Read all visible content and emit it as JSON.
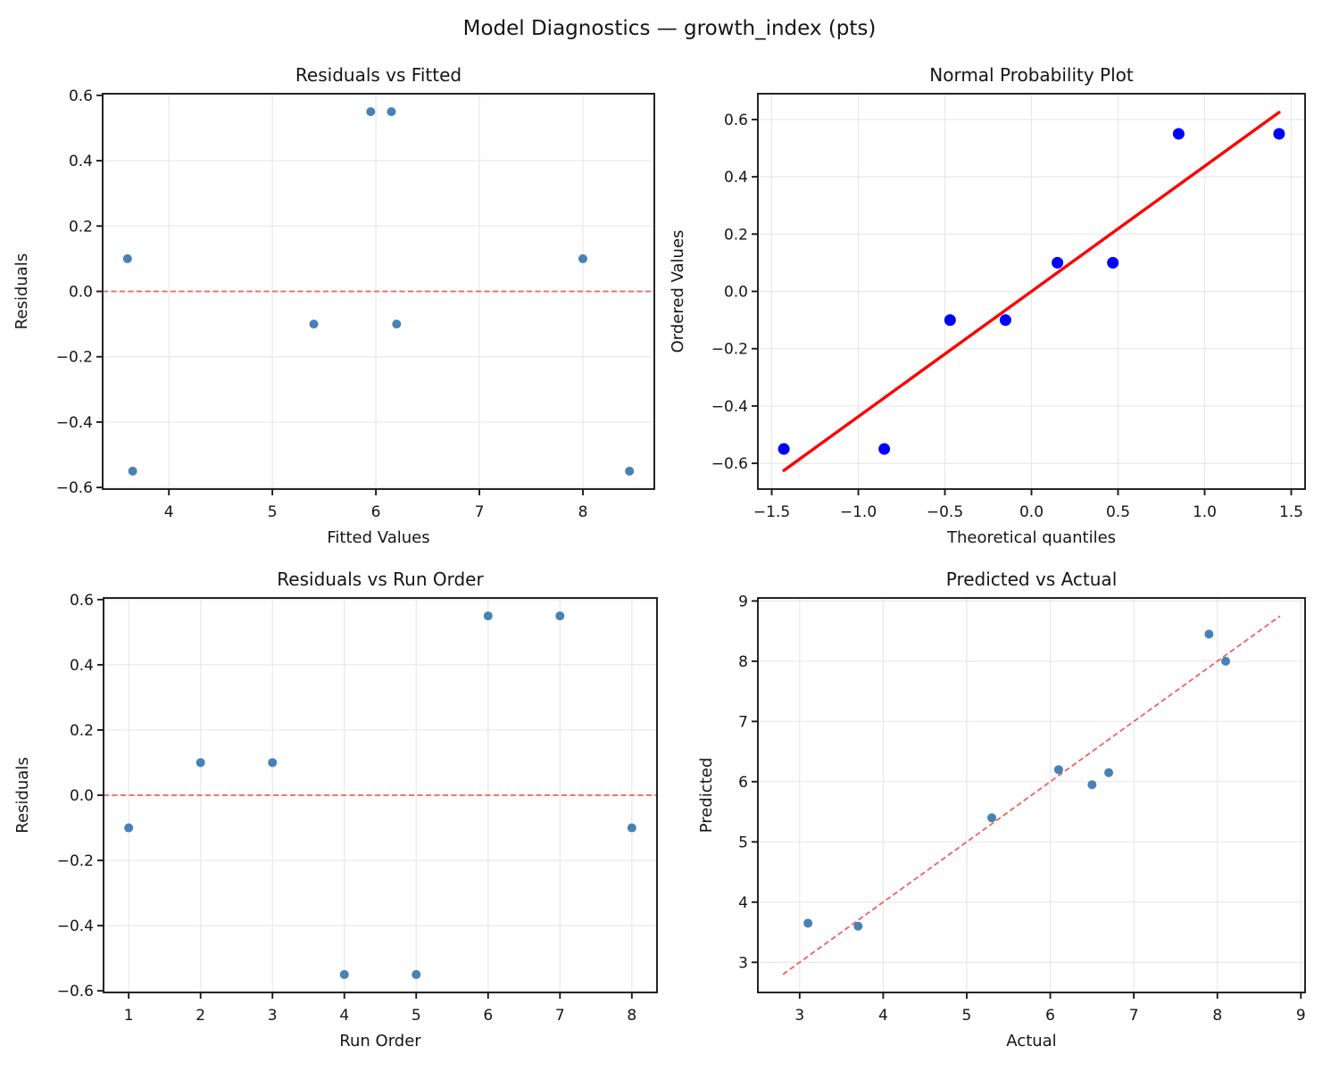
{
  "figure": {
    "suptitle": "Model Diagnostics — growth_index (pts)",
    "colors": {
      "scatter_marker": "#4682B4",
      "probplot_marker": "#0000FF",
      "probplot_line": "#FF0000",
      "refline": "#F26060",
      "grid": "#E8E8E8",
      "spine": "#1A1A1A",
      "text": "#151515",
      "background": "#FFFFFF"
    }
  },
  "chart_data": [
    {
      "id": "residuals-vs-fitted",
      "type": "scatter",
      "title": "Residuals vs Fitted",
      "xlabel": "Fitted Values",
      "ylabel": "Residuals",
      "x": [
        3.6,
        3.65,
        5.4,
        5.95,
        6.15,
        6.2,
        8.0,
        8.45
      ],
      "y": [
        0.1,
        -0.55,
        -0.1,
        0.55,
        0.55,
        -0.1,
        0.1,
        -0.55
      ],
      "xticks": [
        4,
        5,
        6,
        7,
        8
      ],
      "yticks": [
        -0.6,
        -0.4,
        -0.2,
        0.0,
        0.2,
        0.4,
        0.6
      ],
      "xtick_labels": [
        "4",
        "5",
        "6",
        "7",
        "8"
      ],
      "ytick_labels": [
        "−0.6",
        "−0.4",
        "−0.2",
        "0.0",
        "0.2",
        "0.4",
        "0.6"
      ],
      "xlim": [
        3.36,
        8.69
      ],
      "ylim": [
        -0.605,
        0.605
      ],
      "grid": true,
      "refline": {
        "kind": "hline",
        "y": 0.0,
        "style": "dashed"
      },
      "marker": {
        "color": "#4682B4",
        "radius": 5
      },
      "ylabel_offset": 85
    },
    {
      "id": "normal-probability",
      "type": "scatter",
      "title": "Normal Probability Plot",
      "xlabel": "Theoretical quantiles",
      "ylabel": "Ordered Values",
      "x": [
        -1.43,
        -0.85,
        -0.47,
        -0.15,
        0.15,
        0.47,
        0.85,
        1.43
      ],
      "y": [
        -0.55,
        -0.55,
        -0.1,
        -0.1,
        0.1,
        0.1,
        0.55,
        0.55
      ],
      "xticks": [
        -1.5,
        -1.0,
        -0.5,
        0.0,
        0.5,
        1.0,
        1.5
      ],
      "yticks": [
        -0.6,
        -0.4,
        -0.2,
        0.0,
        0.2,
        0.4,
        0.6
      ],
      "xtick_labels": [
        "−1.5",
        "−1.0",
        "−0.5",
        "0.0",
        "0.5",
        "1.0",
        "1.5"
      ],
      "ytick_labels": [
        "−0.6",
        "−0.4",
        "−0.2",
        "0.0",
        "0.2",
        "0.4",
        "0.6"
      ],
      "xlim": [
        -1.58,
        1.58
      ],
      "ylim": [
        -0.69,
        0.69
      ],
      "grid": true,
      "fit_line": {
        "x1": -1.43,
        "y1": -0.625,
        "x2": 1.43,
        "y2": 0.625,
        "style": "solid"
      },
      "marker": {
        "color": "#0000FF",
        "radius": 6.5
      },
      "ylabel_offset": 84
    },
    {
      "id": "residuals-vs-run-order",
      "type": "scatter",
      "title": "Residuals vs Run Order",
      "xlabel": "Run Order",
      "ylabel": "Residuals",
      "x": [
        1,
        2,
        3,
        4,
        5,
        6,
        7,
        8
      ],
      "y": [
        -0.1,
        0.1,
        0.1,
        -0.55,
        -0.55,
        0.55,
        0.55,
        -0.1
      ],
      "xticks": [
        1,
        2,
        3,
        4,
        5,
        6,
        7,
        8
      ],
      "yticks": [
        -0.6,
        -0.4,
        -0.2,
        0.0,
        0.2,
        0.4,
        0.6
      ],
      "xtick_labels": [
        "1",
        "2",
        "3",
        "4",
        "5",
        "6",
        "7",
        "8"
      ],
      "ytick_labels": [
        "−0.6",
        "−0.4",
        "−0.2",
        "0.0",
        "0.2",
        "0.4",
        "0.6"
      ],
      "xlim": [
        0.65,
        8.35
      ],
      "ylim": [
        -0.605,
        0.605
      ],
      "grid": true,
      "refline": {
        "kind": "hline",
        "y": 0.0,
        "style": "dashed"
      },
      "marker": {
        "color": "#4682B4",
        "radius": 5
      },
      "ylabel_offset": 85
    },
    {
      "id": "predicted-vs-actual",
      "type": "scatter",
      "title": "Predicted vs Actual",
      "xlabel": "Actual",
      "ylabel": "Predicted",
      "x": [
        3.1,
        3.7,
        5.3,
        6.1,
        6.5,
        6.7,
        7.9,
        8.1
      ],
      "y": [
        3.65,
        3.6,
        5.4,
        6.2,
        5.95,
        6.15,
        8.45,
        8.0
      ],
      "xticks": [
        3,
        4,
        5,
        6,
        7,
        8,
        9
      ],
      "yticks": [
        3,
        4,
        5,
        6,
        7,
        8,
        9
      ],
      "xtick_labels": [
        "3",
        "4",
        "5",
        "6",
        "7",
        "8",
        "9"
      ],
      "ytick_labels": [
        "3",
        "4",
        "5",
        "6",
        "7",
        "8",
        "9"
      ],
      "xlim": [
        2.5,
        9.05
      ],
      "ylim": [
        2.5,
        9.05
      ],
      "grid": true,
      "refline": {
        "kind": "segment",
        "x1": 2.8,
        "y1": 2.8,
        "x2": 8.75,
        "y2": 8.75,
        "style": "dashed"
      },
      "marker": {
        "color": "#4682B4",
        "radius": 5
      },
      "ylabel_offset": 52
    }
  ]
}
